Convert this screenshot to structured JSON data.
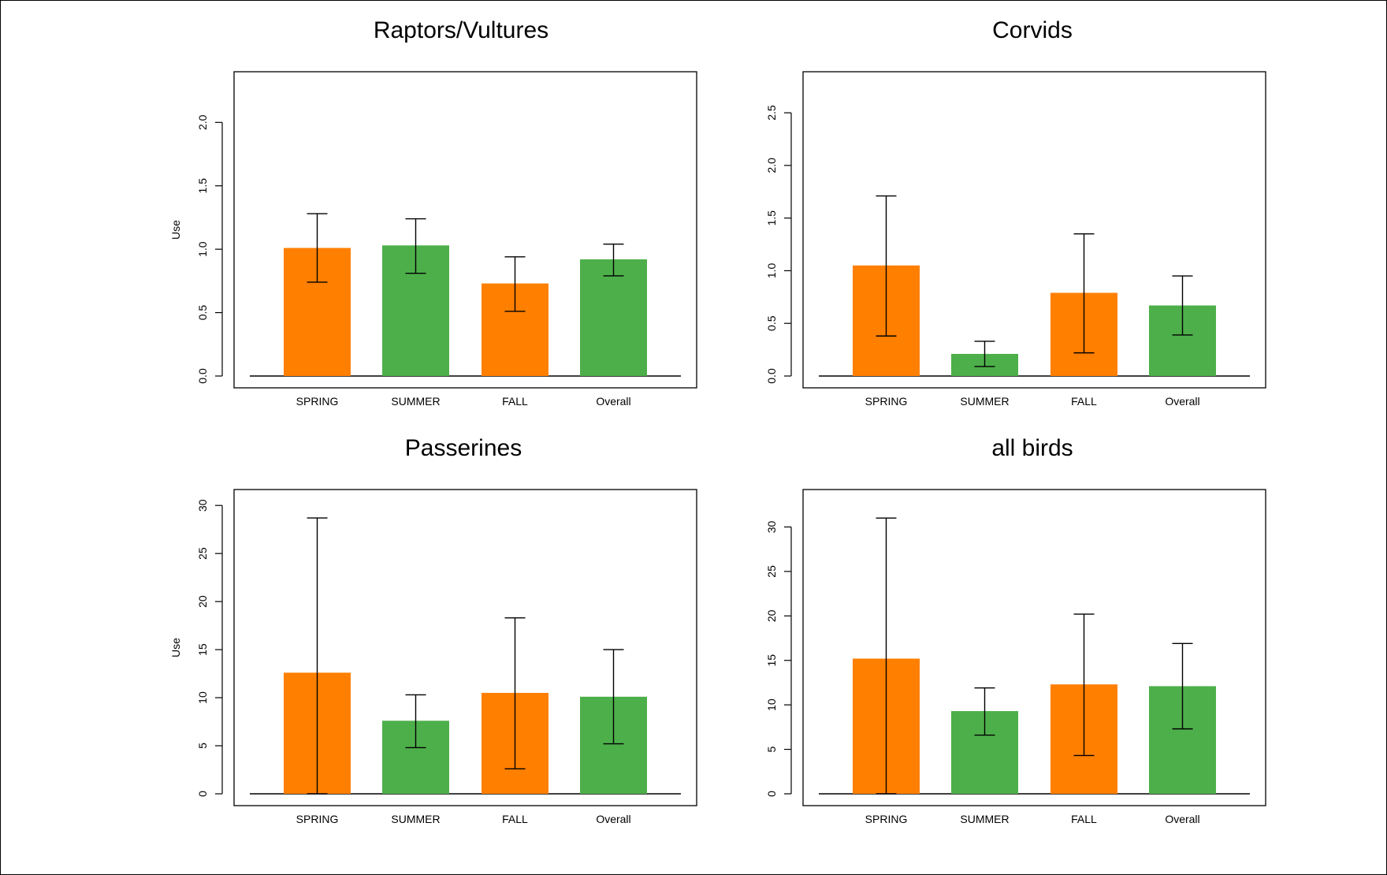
{
  "chart_data": [
    {
      "type": "bar",
      "title": "Raptors/Vultures",
      "ylabel": "Use",
      "xlabel": "",
      "categories": [
        "SPRING",
        "SUMMER",
        "FALL",
        "Overall"
      ],
      "values": [
        1.01,
        1.03,
        0.73,
        0.92
      ],
      "error_low": [
        0.74,
        0.81,
        0.51,
        0.79
      ],
      "error_high": [
        1.28,
        1.24,
        0.94,
        1.04
      ],
      "ylim": [
        0,
        2.35
      ],
      "yticks": [
        "0.0",
        "0.5",
        "1.0",
        "1.5",
        "2.0"
      ],
      "grid": false
    },
    {
      "type": "bar",
      "title": "Corvids",
      "ylabel": "",
      "xlabel": "",
      "categories": [
        "SPRING",
        "SUMMER",
        "FALL",
        "Overall"
      ],
      "values": [
        1.05,
        0.21,
        0.79,
        0.67
      ],
      "error_low": [
        0.38,
        0.09,
        0.22,
        0.39
      ],
      "error_high": [
        1.71,
        0.33,
        1.35,
        0.95
      ],
      "ylim": [
        0,
        2.83
      ],
      "yticks": [
        "0.0",
        "0.5",
        "1.0",
        "1.5",
        "2.0",
        "2.5"
      ],
      "grid": false
    },
    {
      "type": "bar",
      "title": "Passerines",
      "ylabel": "Use",
      "xlabel": "",
      "categories": [
        "SPRING",
        "SUMMER",
        "FALL",
        "Overall"
      ],
      "values": [
        12.6,
        7.6,
        10.5,
        10.1
      ],
      "error_low": [
        0.0,
        4.8,
        2.6,
        5.2
      ],
      "error_high": [
        28.7,
        10.3,
        18.3,
        15.0
      ],
      "ylim": [
        0,
        31
      ],
      "yticks": [
        "0",
        "5",
        "10",
        "15",
        "20",
        "25",
        "30"
      ],
      "grid": false
    },
    {
      "type": "bar",
      "title": "all birds",
      "ylabel": "",
      "xlabel": "",
      "categories": [
        "SPRING",
        "SUMMER",
        "FALL",
        "Overall"
      ],
      "values": [
        15.2,
        9.3,
        12.3,
        12.1
      ],
      "error_low": [
        0.0,
        6.6,
        4.3,
        7.3
      ],
      "error_high": [
        31.0,
        11.9,
        20.2,
        16.9
      ],
      "ylim": [
        0,
        33.5
      ],
      "yticks": [
        "0",
        "5",
        "10",
        "15",
        "20",
        "25",
        "30"
      ],
      "grid": false
    }
  ],
  "colors": {
    "SPRING": "#ff7f00",
    "SUMMER": "#4daf4a",
    "FALL": "#ff7f00",
    "Overall": "#4daf4a"
  }
}
